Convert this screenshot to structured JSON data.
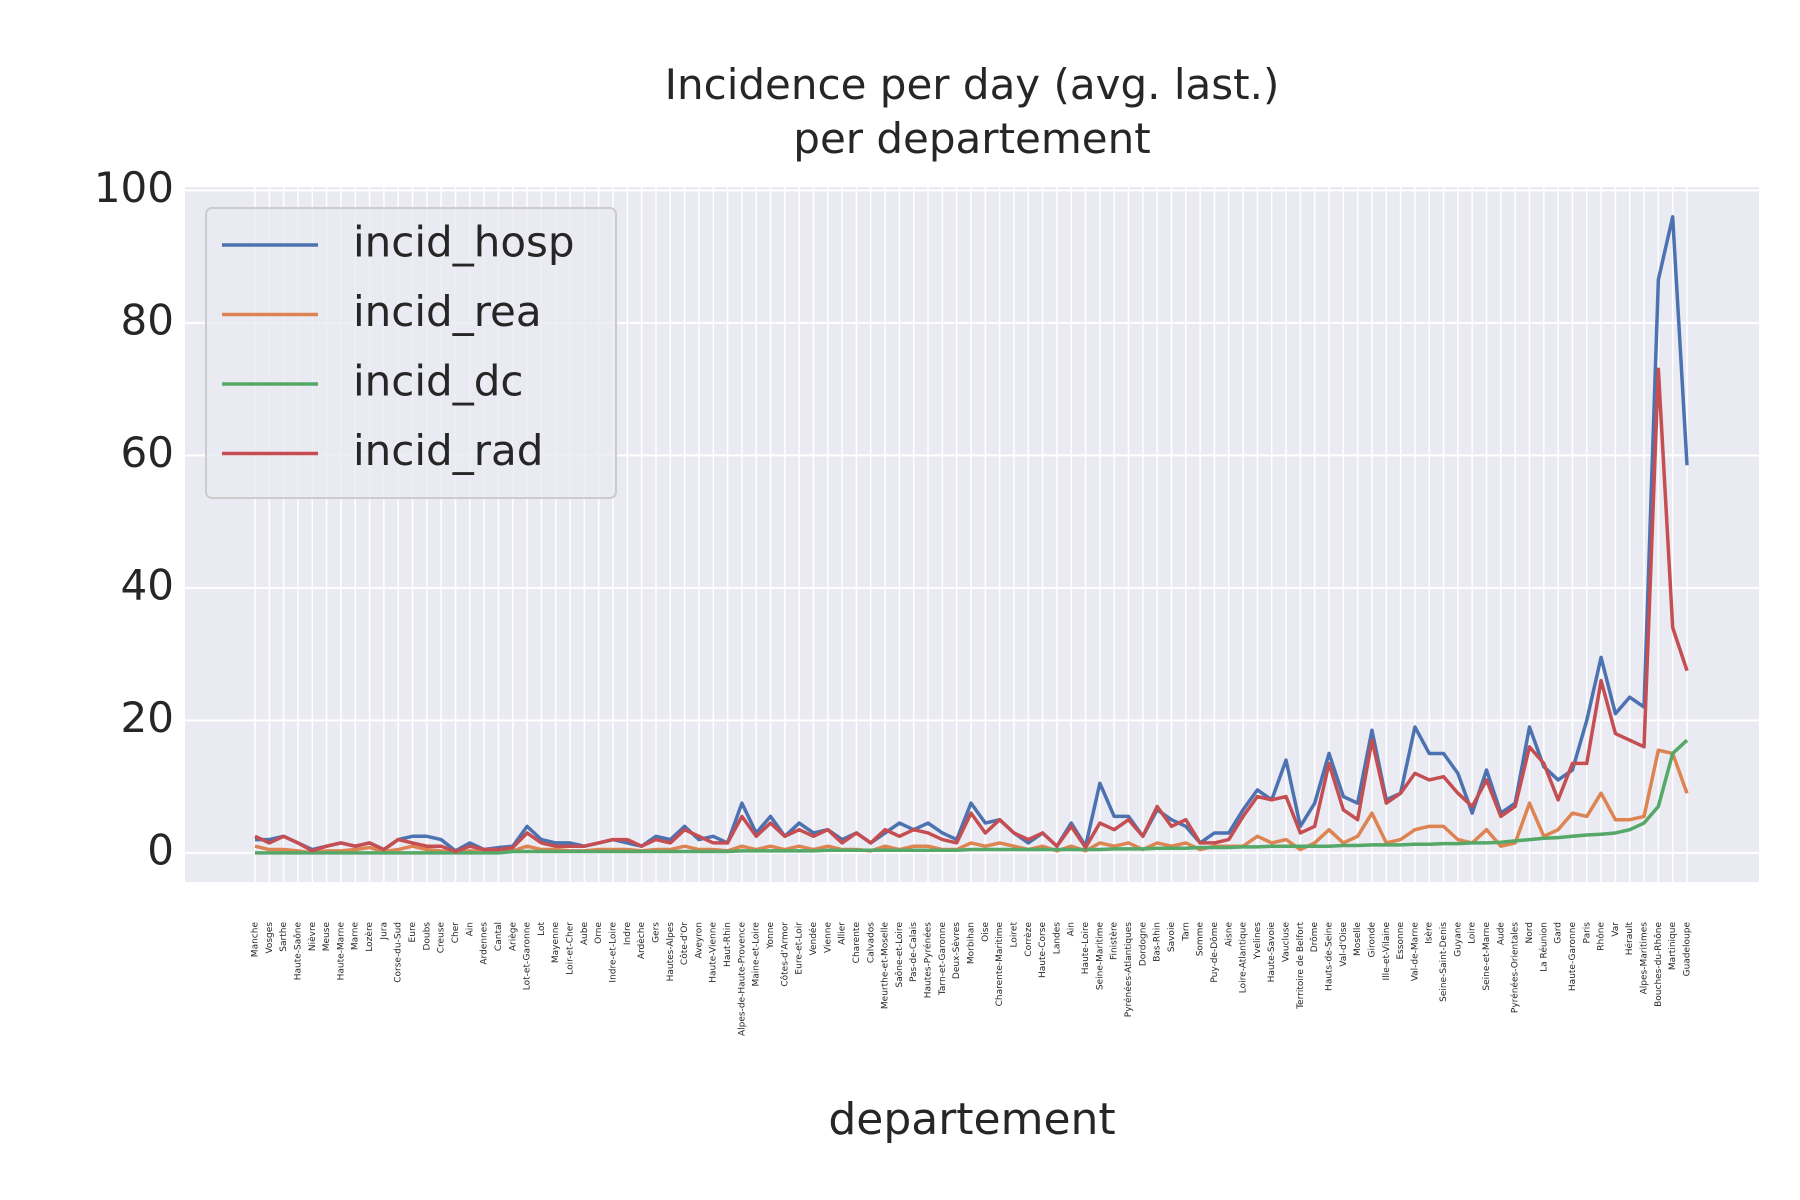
{
  "chart_data": {
    "type": "line",
    "title": "Incidence per day (avg. last.)\nper departement",
    "xlabel": "departement",
    "categories": [
      "Manche",
      "Vosges",
      "Sarthe",
      "Haute-Saône",
      "Nièvre",
      "Meuse",
      "Haute-Marne",
      "Marne",
      "Lozère",
      "Jura",
      "Corse-du-Sud",
      "Eure",
      "Doubs",
      "Creuse",
      "Cher",
      "Ain",
      "Ardennes",
      "Cantal",
      "Ariège",
      "Lot-et-Garonne",
      "Lot",
      "Mayenne",
      "Loir-et-Cher",
      "Aube",
      "Orne",
      "Indre-et-Loire",
      "Indre",
      "Ardèche",
      "Gers",
      "Hautes-Alpes",
      "Côte-d'Or",
      "Aveyron",
      "Haute-Vienne",
      "Haut-Rhin",
      "Alpes-de-Haute-Provence",
      "Maine-et-Loire",
      "Yonne",
      "Côtes-d'Armor",
      "Eure-et-Loir",
      "Vendée",
      "Vienne",
      "Allier",
      "Charente",
      "Calvados",
      "Meurthe-et-Moselle",
      "Saône-et-Loire",
      "Pas-de-Calais",
      "Hautes-Pyrénées",
      "Tarn-et-Garonne",
      "Deux-Sèvres",
      "Morbihan",
      "Oise",
      "Charente-Maritime",
      "Loiret",
      "Corrèze",
      "Haute-Corse",
      "Landes",
      "Ain",
      "Haute-Loire",
      "Seine-Maritime",
      "Finistère",
      "Pyrénées-Atlantiques",
      "Dordogne",
      "Bas-Rhin",
      "Savoie",
      "Tarn",
      "Somme",
      "Puy-de-Dôme",
      "Aisne",
      "Loire-Atlantique",
      "Yvelines",
      "Haute-Savoie",
      "Vaucluse",
      "Territoire de Belfort",
      "Drôme",
      "Hauts-de-Seine",
      "Val-d'Oise",
      "Moselle",
      "Gironde",
      "Ille-et-Vilaine",
      "Essonne",
      "Val-de-Marne",
      "Isère",
      "Seine-Saint-Denis",
      "Guyane",
      "Loire",
      "Seine-et-Marne",
      "Aude",
      "Pyrénées-Orientales",
      "Nord",
      "La Réunion",
      "Gard",
      "Haute-Garonne",
      "Paris",
      "Rhône",
      "Var",
      "Hérault",
      "Alpes-Maritimes",
      "Bouches-du-Rhône",
      "Martinique",
      "Guadeloupe"
    ],
    "series": [
      {
        "name": "incid_hosp",
        "color": "#4c72b0",
        "values": [
          2,
          2,
          2.5,
          1.5,
          0.5,
          1,
          1.5,
          1,
          1.5,
          0.5,
          2,
          2.5,
          2.5,
          2,
          0.3,
          1.5,
          0.5,
          0.8,
          1,
          4,
          2,
          1.5,
          1.5,
          1,
          1.5,
          2,
          1.5,
          1,
          2.5,
          2,
          4,
          2,
          2.5,
          1.5,
          7.5,
          3,
          5.5,
          2.5,
          4.5,
          3,
          3.5,
          2,
          3,
          1.5,
          3,
          4.5,
          3.5,
          4.5,
          3,
          2,
          7.5,
          4.5,
          5,
          3,
          1.5,
          3,
          1,
          4.5,
          1,
          10.5,
          5.5,
          5.5,
          2.5,
          6.5,
          5,
          4,
          1.5,
          3,
          3,
          6.5,
          9.5,
          8,
          14,
          4,
          7.5,
          15,
          8.5,
          7.5,
          18.5,
          8,
          9,
          19,
          15,
          15,
          12,
          6,
          12.5,
          6,
          7.5,
          19,
          13,
          11,
          12.5,
          20,
          29.5,
          21,
          23.5,
          22,
          86.5,
          96,
          58.5
        ]
      },
      {
        "name": "incid_rea",
        "color": "#dd8452",
        "values": [
          1,
          0.5,
          0.5,
          0.3,
          0,
          0.3,
          0.3,
          0.5,
          0.8,
          0.2,
          0.5,
          1,
          0.5,
          0.3,
          0,
          0.3,
          0.2,
          0.3,
          0.3,
          1,
          0.5,
          0.5,
          0.3,
          0.3,
          0.5,
          0.5,
          0.5,
          0.3,
          0.5,
          0.5,
          1,
          0.5,
          0.5,
          0.3,
          1,
          0.5,
          1,
          0.5,
          1,
          0.5,
          1,
          0.5,
          0.5,
          0.3,
          1,
          0.5,
          1,
          1,
          0.5,
          0.5,
          1.5,
          1,
          1.5,
          1,
          0.5,
          1,
          0.3,
          1,
          0.3,
          1.5,
          1,
          1.5,
          0.5,
          1.5,
          1,
          1.5,
          0.5,
          1,
          1,
          1,
          2.5,
          1.5,
          2,
          0.5,
          1.5,
          3.5,
          1.5,
          2.5,
          6,
          1.5,
          2,
          3.5,
          4,
          4,
          2,
          1.5,
          3.5,
          1,
          1.5,
          7.5,
          2.5,
          3.5,
          6,
          5.5,
          9,
          5,
          5,
          5.5,
          15.5,
          15,
          9
        ]
      },
      {
        "name": "incid_dc",
        "color": "#55a868",
        "values": [
          0,
          0,
          0,
          0,
          0,
          0,
          0,
          0,
          0,
          0,
          0,
          0,
          0,
          0,
          0,
          0,
          0,
          0,
          0.2,
          0.2,
          0.2,
          0.2,
          0.2,
          0.2,
          0.2,
          0.2,
          0.2,
          0.2,
          0.2,
          0.2,
          0.2,
          0.2,
          0.2,
          0.2,
          0.3,
          0.3,
          0.3,
          0.3,
          0.3,
          0.3,
          0.4,
          0.4,
          0.4,
          0.4,
          0.4,
          0.4,
          0.4,
          0.4,
          0.4,
          0.4,
          0.5,
          0.5,
          0.5,
          0.5,
          0.5,
          0.5,
          0.5,
          0.5,
          0.5,
          0.5,
          0.6,
          0.6,
          0.6,
          0.7,
          0.7,
          0.7,
          0.8,
          0.8,
          0.8,
          0.9,
          0.9,
          1,
          1,
          1,
          1,
          1,
          1.1,
          1.1,
          1.2,
          1.2,
          1.2,
          1.3,
          1.3,
          1.4,
          1.4,
          1.5,
          1.5,
          1.6,
          1.8,
          2,
          2.2,
          2.3,
          2.5,
          2.7,
          2.8,
          3,
          3.5,
          4.5,
          7,
          15,
          17
        ]
      },
      {
        "name": "incid_rad",
        "color": "#c44e52",
        "values": [
          2.5,
          1.5,
          2.5,
          1.5,
          0.3,
          1,
          1.5,
          1,
          1.5,
          0.5,
          2,
          1.5,
          1,
          1,
          0.2,
          1,
          0.5,
          0.5,
          0.8,
          3,
          1.5,
          1,
          1,
          1,
          1.5,
          2,
          2,
          1,
          2,
          1.5,
          3.5,
          2.5,
          1.5,
          1.5,
          5.5,
          2.5,
          4.5,
          2.5,
          3.5,
          2.5,
          3.5,
          1.5,
          3,
          1.5,
          3.5,
          2.5,
          3.5,
          3,
          2,
          1.5,
          6,
          3,
          5,
          3,
          2,
          3,
          1,
          4,
          0.8,
          4.5,
          3.5,
          5,
          2.5,
          7,
          4,
          5,
          1.5,
          1.5,
          2,
          5.5,
          8.5,
          8,
          8.5,
          3,
          4,
          13.5,
          6.5,
          5,
          17,
          7.5,
          9,
          12,
          11,
          11.5,
          9,
          7,
          11,
          5.5,
          7,
          16,
          13.5,
          8,
          13.5,
          13.5,
          26,
          18,
          17,
          16,
          73,
          34,
          27.5
        ]
      }
    ],
    "ylim": [
      -4.4,
      100.5
    ],
    "yticks": [
      0,
      20,
      40,
      60,
      80,
      100
    ],
    "grid": true,
    "legend": "upper left"
  }
}
